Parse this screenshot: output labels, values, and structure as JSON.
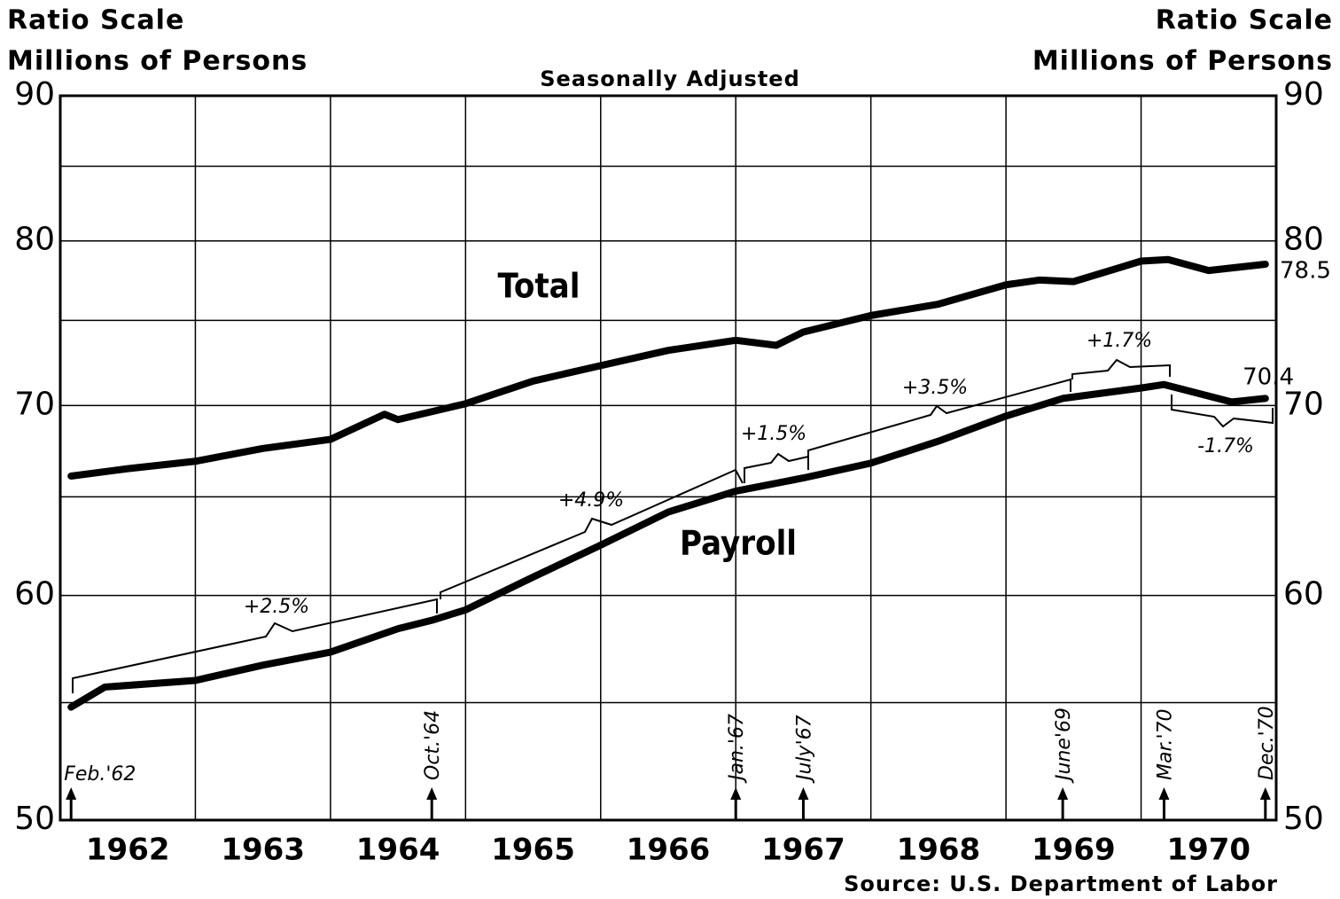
{
  "chart_data": {
    "type": "line",
    "axis_label_left": [
      "Ratio Scale",
      "Millions of Persons"
    ],
    "axis_label_right": [
      "Ratio Scale",
      "Millions of Persons"
    ],
    "subtitle": "Seasonally Adjusted",
    "source": "Source: U.S. Department of Labor",
    "log_scale": true,
    "grid": true,
    "ylim": [
      50,
      90
    ],
    "yticks": [
      50,
      60,
      70,
      80,
      90
    ],
    "minor_yticks": [
      55,
      65,
      75,
      85
    ],
    "xlim": [
      1962,
      1971
    ],
    "xgrid": [
      1963,
      1964,
      1965,
      1966,
      1967,
      1968,
      1969,
      1970
    ],
    "xticks": [
      {
        "value": 1962.5,
        "label": "1962"
      },
      {
        "value": 1963.5,
        "label": "1963"
      },
      {
        "value": 1964.5,
        "label": "1964"
      },
      {
        "value": 1965.5,
        "label": "1965"
      },
      {
        "value": 1966.5,
        "label": "1966"
      },
      {
        "value": 1967.5,
        "label": "1967"
      },
      {
        "value": 1968.5,
        "label": "1968"
      },
      {
        "value": 1969.5,
        "label": "1969"
      },
      {
        "value": 1970.5,
        "label": "1970"
      }
    ],
    "series": [
      {
        "name": "Total",
        "color": "#000000",
        "x": [
          1962.08,
          1962.5,
          1963.0,
          1963.5,
          1964.0,
          1964.4,
          1964.5,
          1965.0,
          1965.5,
          1966.0,
          1966.5,
          1967.0,
          1967.3,
          1967.5,
          1968.0,
          1968.5,
          1969.0,
          1969.25,
          1969.5,
          1970.0,
          1970.2,
          1970.5,
          1970.92
        ],
        "values": [
          66.1,
          66.5,
          66.9,
          67.6,
          68.1,
          69.5,
          69.2,
          70.1,
          71.4,
          72.3,
          73.2,
          73.8,
          73.5,
          74.3,
          75.3,
          76.0,
          77.2,
          77.5,
          77.4,
          78.7,
          78.8,
          78.1,
          78.5
        ]
      },
      {
        "name": "Payroll",
        "color": "#000000",
        "x": [
          1962.08,
          1962.33,
          1963.0,
          1963.5,
          1964.0,
          1964.5,
          1964.75,
          1965.0,
          1965.5,
          1966.0,
          1966.5,
          1967.0,
          1967.5,
          1968.0,
          1968.5,
          1969.0,
          1969.42,
          1970.0,
          1970.17,
          1970.67,
          1970.92
        ],
        "values": [
          54.8,
          55.7,
          56.0,
          56.7,
          57.3,
          58.4,
          58.8,
          59.3,
          60.9,
          62.5,
          64.2,
          65.3,
          66.0,
          66.8,
          68.0,
          69.4,
          70.4,
          71.0,
          71.2,
          70.2,
          70.4
        ]
      }
    ],
    "events": [
      {
        "label": "Feb.'62",
        "x": 1962.08
      },
      {
        "label": "Oct.'64",
        "x": 1964.75
      },
      {
        "label": "Jan.'67",
        "x": 1967.0
      },
      {
        "label": "July'67",
        "x": 1967.5
      },
      {
        "label": "June'69",
        "x": 1969.42
      },
      {
        "label": "Mar.'70",
        "x": 1970.17
      },
      {
        "label": "Dec.'70",
        "x": 1970.92
      }
    ],
    "annotations": [
      "+2.5%",
      "+4.9%",
      "+1.5%",
      "+3.5%",
      "+1.7%",
      "-1.7%"
    ]
  }
}
